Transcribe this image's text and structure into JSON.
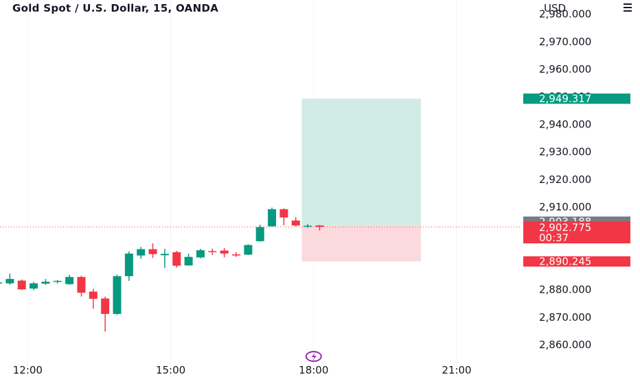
{
  "header": {
    "title": "Gold Spot / U.S. Dollar, 15, OANDA",
    "currency": "USD"
  },
  "colors": {
    "up": "#089981",
    "down": "#f23645",
    "target_zone": "#d1ece5",
    "stop_zone": "#fbd9dc",
    "target_tag": "#089981",
    "entry_tag": "#787b86",
    "price_tag": "#f23645",
    "stop_tag": "#f23645",
    "lightning_badge": "#9c27b0"
  },
  "chart_data": {
    "type": "candlestick",
    "title": "Gold Spot / U.S. Dollar, 15, OANDA",
    "y_axis_label": "USD",
    "ylim": [
      2855,
      2983
    ],
    "y_ticks": [
      2860,
      2870,
      2880,
      2890,
      2900,
      2910,
      2920,
      2930,
      2940,
      2950,
      2960,
      2970,
      2980
    ],
    "y_tick_labels": [
      "2,860.000",
      "2,870.000",
      "2,880.000",
      "2,890.000",
      "2,900.000",
      "2,910.000",
      "2,920.000",
      "2,930.000",
      "2,940.000",
      "2,950.000",
      "2,960.000",
      "2,970.000",
      "2,980.000"
    ],
    "x_tick_labels": [
      {
        "time": "12:00",
        "bar": 2.5
      },
      {
        "time": "15:00",
        "bar": 14.5
      },
      {
        "time": "18:00",
        "bar": 26.5
      },
      {
        "time": "21:00",
        "bar": 38.5
      }
    ],
    "grid": true,
    "candles": [
      {
        "o": 2882.2,
        "h": 2882.6,
        "l": 2881.6,
        "c": 2882.6
      },
      {
        "o": 2882.3,
        "h": 2885.8,
        "l": 2881.8,
        "c": 2883.9
      },
      {
        "o": 2883.3,
        "h": 2883.7,
        "l": 2879.9,
        "c": 2880.1
      },
      {
        "o": 2880.4,
        "h": 2882.8,
        "l": 2879.8,
        "c": 2882.3
      },
      {
        "o": 2882.2,
        "h": 2883.9,
        "l": 2881.7,
        "c": 2882.9
      },
      {
        "o": 2883.0,
        "h": 2883.5,
        "l": 2882.2,
        "c": 2883.2
      },
      {
        "o": 2882.0,
        "h": 2885.4,
        "l": 2881.8,
        "c": 2884.6
      },
      {
        "o": 2884.6,
        "h": 2885.1,
        "l": 2877.5,
        "c": 2878.9
      },
      {
        "o": 2879.3,
        "h": 2880.3,
        "l": 2873.1,
        "c": 2876.7
      },
      {
        "o": 2876.8,
        "h": 2877.5,
        "l": 2864.8,
        "c": 2871.2
      },
      {
        "o": 2871.2,
        "h": 2885.5,
        "l": 2870.8,
        "c": 2884.9
      },
      {
        "o": 2884.9,
        "h": 2893.9,
        "l": 2883.2,
        "c": 2893.1
      },
      {
        "o": 2892.4,
        "h": 2895.5,
        "l": 2891.2,
        "c": 2894.7
      },
      {
        "o": 2894.7,
        "h": 2896.8,
        "l": 2891.5,
        "c": 2892.9
      },
      {
        "o": 2892.5,
        "h": 2894.8,
        "l": 2887.9,
        "c": 2893.0
      },
      {
        "o": 2893.6,
        "h": 2894.1,
        "l": 2888.0,
        "c": 2888.7
      },
      {
        "o": 2888.8,
        "h": 2893.1,
        "l": 2888.7,
        "c": 2891.9
      },
      {
        "o": 2891.7,
        "h": 2894.8,
        "l": 2891.4,
        "c": 2894.3
      },
      {
        "o": 2894.0,
        "h": 2894.9,
        "l": 2892.6,
        "c": 2893.9
      },
      {
        "o": 2894.2,
        "h": 2895.1,
        "l": 2891.7,
        "c": 2893.1
      },
      {
        "o": 2892.8,
        "h": 2893.6,
        "l": 2891.9,
        "c": 2892.4
      },
      {
        "o": 2892.7,
        "h": 2896.5,
        "l": 2892.6,
        "c": 2896.2
      },
      {
        "o": 2897.6,
        "h": 2903.6,
        "l": 2897.4,
        "c": 2902.7
      },
      {
        "o": 2903.0,
        "h": 2909.8,
        "l": 2902.8,
        "c": 2909.2
      },
      {
        "o": 2909.2,
        "h": 2909.5,
        "l": 2903.4,
        "c": 2906.2
      },
      {
        "o": 2905.1,
        "h": 2906.3,
        "l": 2902.9,
        "c": 2903.3
      },
      {
        "o": 2903.1,
        "h": 2903.8,
        "l": 2902.4,
        "c": 2903.2
      },
      {
        "o": 2903.3,
        "h": 2903.5,
        "l": 2901.5,
        "c": 2902.8
      }
    ],
    "position": {
      "start_bar": 25.5,
      "end_bar": 35.5,
      "entry": 2903.188,
      "target": 2949.317,
      "stop": 2890.245
    },
    "current_price": 2902.775,
    "price_tags": {
      "target": "2,949.317",
      "entry": "2,903.188",
      "current": "2,902.775",
      "countdown": "00:37",
      "stop": "2,890.245"
    },
    "bar_badge": {
      "bar": 26.5,
      "icon": "lightning-bolt-icon"
    }
  }
}
